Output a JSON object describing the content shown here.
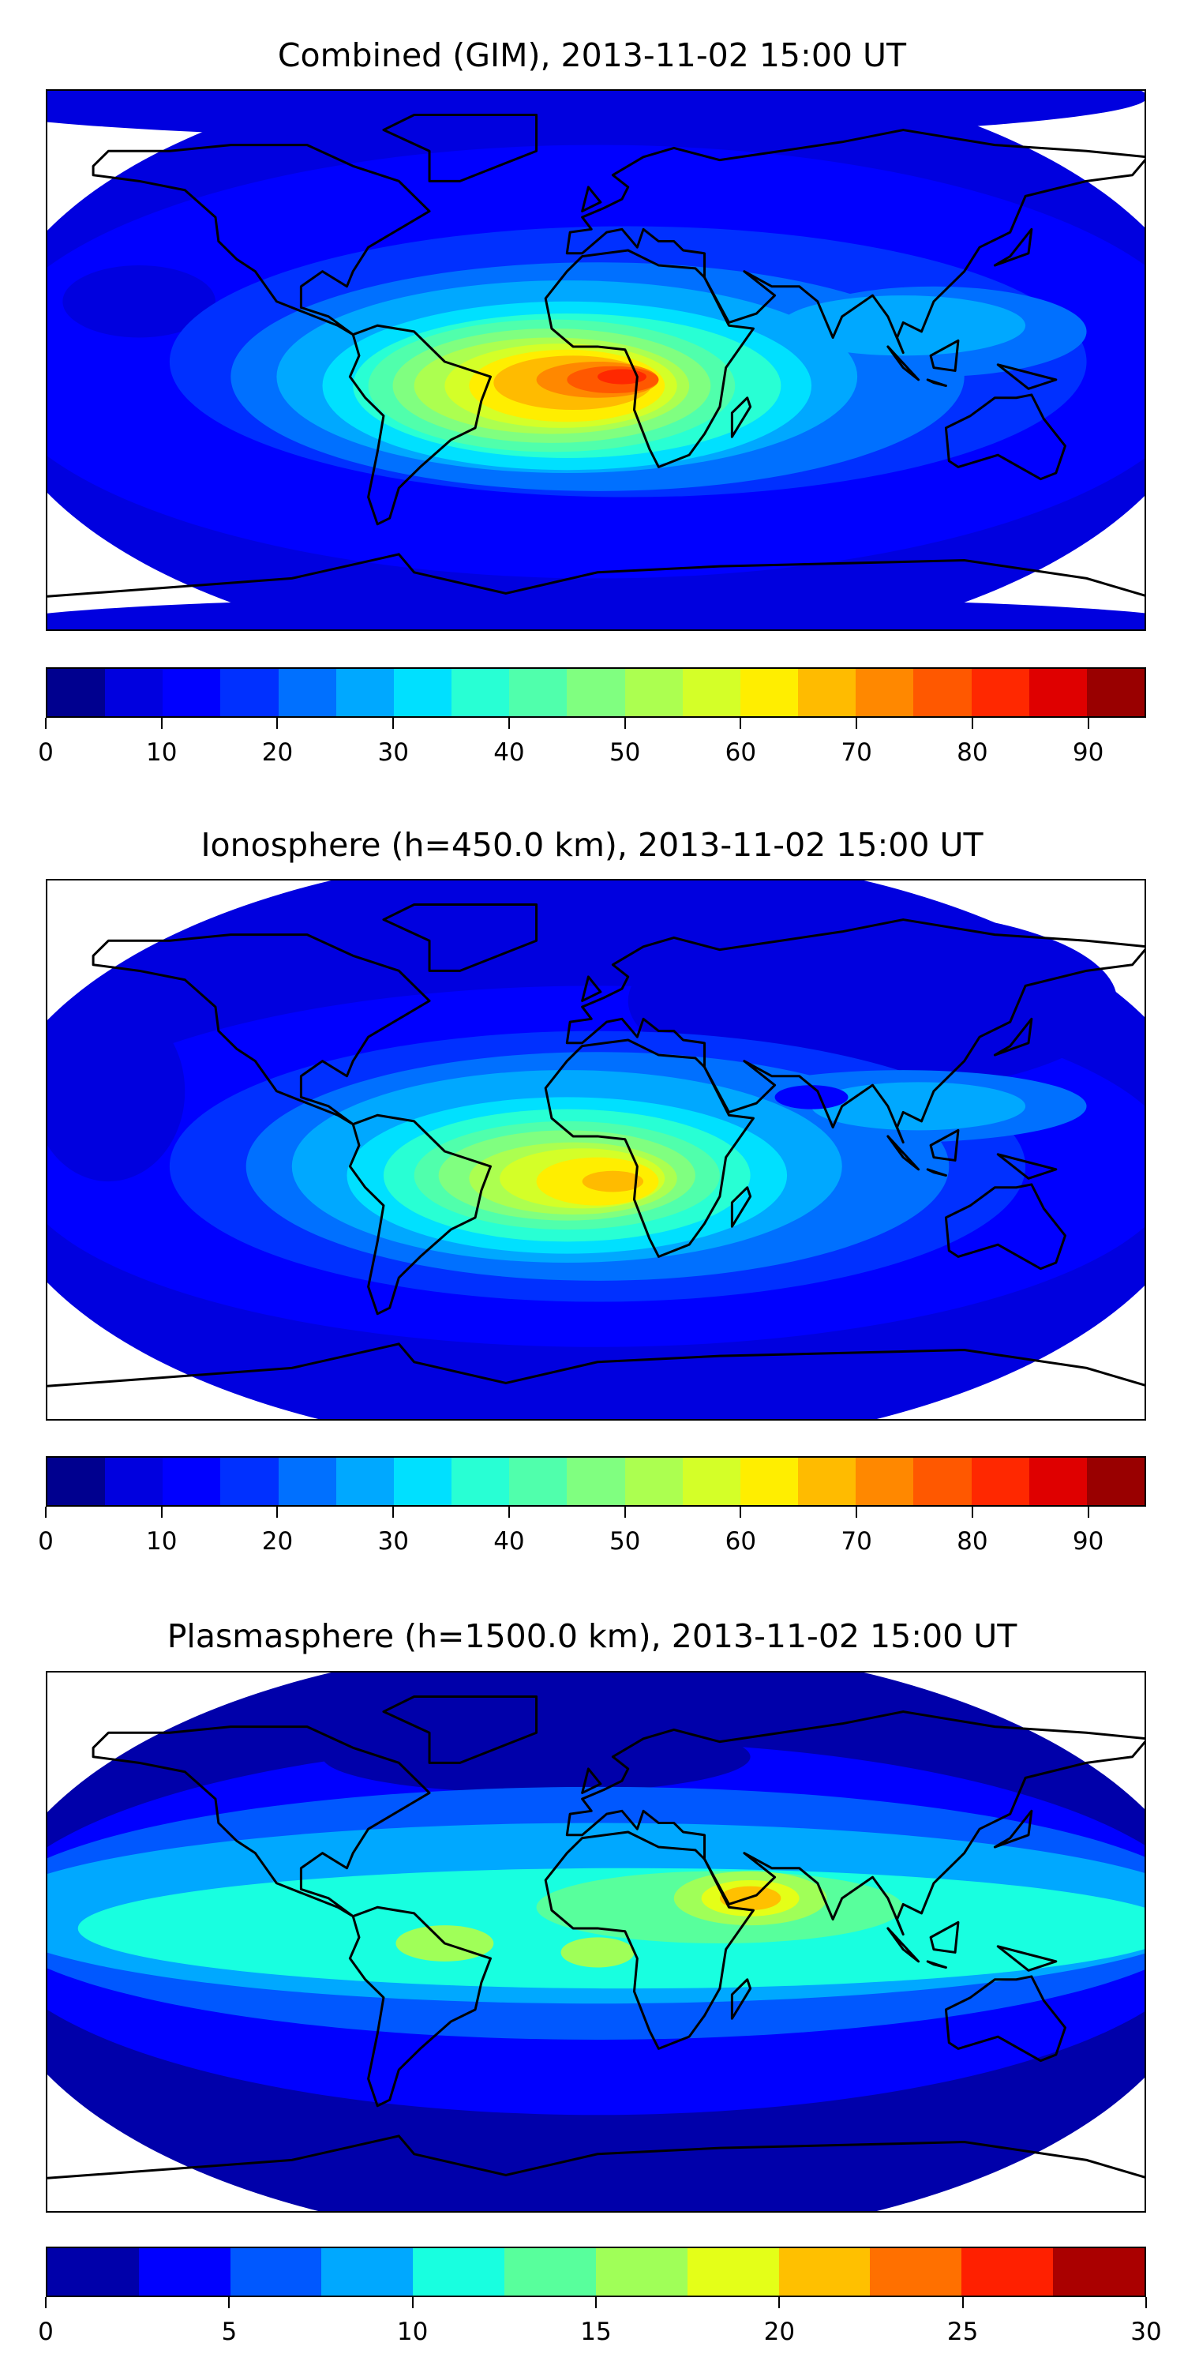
{
  "panels": [
    {
      "title": "Combined (GIM), 2013-11-02 15:00 UT",
      "chart_data": {
        "type": "heatmap",
        "title": "Combined (GIM), 2013-11-02 15:00 UT",
        "x_range": [
          -180,
          180
        ],
        "y_range": [
          -90,
          90
        ],
        "levels": [
          0,
          5,
          10,
          15,
          20,
          25,
          30,
          35,
          40,
          45,
          50,
          55,
          60,
          65,
          70,
          75,
          80,
          85,
          90,
          95
        ],
        "ticks": [
          "0",
          "10",
          "20",
          "30",
          "40",
          "50",
          "60",
          "70",
          "80",
          "90"
        ],
        "tick_values": [
          0,
          10,
          20,
          30,
          40,
          50,
          60,
          70,
          80,
          90
        ],
        "vmax": 95,
        "colors": [
          "#00008f",
          "#0000df",
          "#0000ff",
          "#0030ff",
          "#0070ff",
          "#00a8ff",
          "#00e0ff",
          "#28ffd4",
          "#50ffac",
          "#80ff80",
          "#acff50",
          "#d4ff28",
          "#ffee00",
          "#ffbb00",
          "#ff8800",
          "#ff5800",
          "#ff2800",
          "#df0000",
          "#990000"
        ],
        "peak": {
          "lon": 5,
          "lat": -8,
          "value_range": [
            80,
            85
          ]
        }
      }
    },
    {
      "title": "Ionosphere  (h=450.0 km), 2013-11-02 15:00 UT",
      "chart_data": {
        "type": "heatmap",
        "title": "Ionosphere  (h=450.0 km), 2013-11-02 15:00 UT",
        "x_range": [
          -180,
          180
        ],
        "y_range": [
          -90,
          90
        ],
        "levels": [
          0,
          5,
          10,
          15,
          20,
          25,
          30,
          35,
          40,
          45,
          50,
          55,
          60,
          65,
          70,
          75,
          80,
          85,
          90,
          95
        ],
        "ticks": [
          "0",
          "10",
          "20",
          "30",
          "40",
          "50",
          "60",
          "70",
          "80",
          "90"
        ],
        "tick_values": [
          0,
          10,
          20,
          30,
          40,
          50,
          60,
          70,
          80,
          90
        ],
        "vmax": 95,
        "colors": [
          "#00008f",
          "#0000df",
          "#0000ff",
          "#0030ff",
          "#0070ff",
          "#00a8ff",
          "#00e0ff",
          "#28ffd4",
          "#50ffac",
          "#80ff80",
          "#acff50",
          "#d4ff28",
          "#ffee00",
          "#ffbb00",
          "#ff8800",
          "#ff5800",
          "#ff2800",
          "#df0000",
          "#990000"
        ],
        "peak": {
          "lon": 5,
          "lat": -10,
          "value_range": [
            65,
            70
          ]
        }
      }
    },
    {
      "title": "Plasmasphere (h=1500.0 km), 2013-11-02 15:00 UT",
      "chart_data": {
        "type": "heatmap",
        "title": "Plasmasphere (h=1500.0 km), 2013-11-02 15:00 UT",
        "x_range": [
          -180,
          180
        ],
        "y_range": [
          -90,
          90
        ],
        "levels": [
          0,
          2.5,
          5,
          7.5,
          10,
          12.5,
          15,
          17.5,
          20,
          22.5,
          25,
          27.5,
          30
        ],
        "ticks": [
          "0",
          "5",
          "10",
          "15",
          "20",
          "25",
          "30"
        ],
        "tick_values": [
          0,
          5,
          10,
          15,
          20,
          25,
          30
        ],
        "vmax": 30,
        "colors": [
          "#0000aa",
          "#0000ff",
          "#0058ff",
          "#00a8ff",
          "#18ffe0",
          "#58ff9c",
          "#a0ff58",
          "#e4ff18",
          "#ffc000",
          "#ff7000",
          "#ff2000",
          "#aa0000"
        ],
        "peak": {
          "lon": 50,
          "lat": 15,
          "value_range": [
            20,
            22.5
          ]
        }
      }
    }
  ]
}
